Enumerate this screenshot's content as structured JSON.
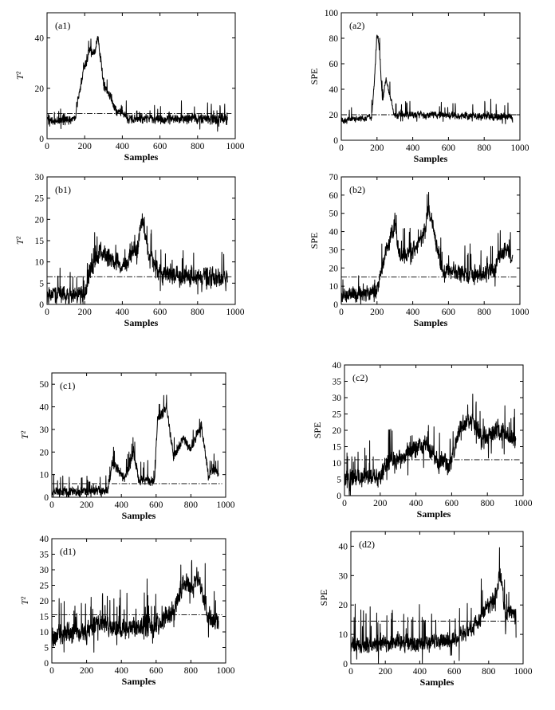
{
  "chart_data": [
    {
      "id": "a1",
      "type": "line",
      "label": "(a1)",
      "xlabel": "Samples",
      "ylabel": "T²",
      "xlim": [
        0,
        1000
      ],
      "ylim": [
        0,
        50
      ],
      "xticks": [
        0,
        200,
        400,
        600,
        800,
        1000
      ],
      "yticks": [
        0,
        20,
        40
      ],
      "n_samples": 960,
      "threshold": 10,
      "profile": [
        [
          0,
          7
        ],
        [
          150,
          8
        ],
        [
          160,
          14
        ],
        [
          190,
          26
        ],
        [
          230,
          36
        ],
        [
          250,
          33
        ],
        [
          270,
          40
        ],
        [
          300,
          22
        ],
        [
          320,
          18
        ],
        [
          340,
          16
        ],
        [
          370,
          10
        ],
        [
          400,
          11
        ],
        [
          420,
          8
        ],
        [
          960,
          8
        ]
      ],
      "noise": 2.2,
      "spike_p": 0.05,
      "spike_amp": 4.0,
      "series": [
        {
          "name": "T²",
          "x": [
            0,
            150,
            160,
            190,
            230,
            250,
            270,
            300,
            320,
            340,
            370,
            400,
            420,
            960
          ],
          "y": [
            7,
            8,
            14,
            26,
            36,
            33,
            40,
            22,
            18,
            16,
            10,
            11,
            8,
            8
          ]
        }
      ]
    },
    {
      "id": "a2",
      "type": "line",
      "label": "(a2)",
      "xlabel": "Samples",
      "ylabel": "SPE",
      "xlim": [
        0,
        1000
      ],
      "ylim": [
        0,
        100
      ],
      "xticks": [
        0,
        200,
        400,
        600,
        800,
        1000
      ],
      "yticks": [
        0,
        20,
        40,
        60,
        80,
        100
      ],
      "n_samples": 960,
      "threshold": 20,
      "profile": [
        [
          0,
          16
        ],
        [
          170,
          17
        ],
        [
          185,
          45
        ],
        [
          200,
          85
        ],
        [
          215,
          70
        ],
        [
          230,
          30
        ],
        [
          250,
          48
        ],
        [
          270,
          35
        ],
        [
          300,
          20
        ],
        [
          400,
          20
        ],
        [
          960,
          18
        ]
      ],
      "noise": 3.0,
      "spike_p": 0.04,
      "spike_amp": 8.0,
      "series": [
        {
          "name": "SPE",
          "x": [
            0,
            170,
            185,
            200,
            215,
            230,
            250,
            270,
            300,
            400,
            960
          ],
          "y": [
            16,
            17,
            45,
            85,
            70,
            30,
            48,
            35,
            20,
            20,
            18
          ]
        }
      ]
    },
    {
      "id": "b1",
      "type": "line",
      "label": "(b1)",
      "xlabel": "Samples",
      "ylabel": "T²",
      "xlim": [
        0,
        1000
      ],
      "ylim": [
        0,
        30
      ],
      "xticks": [
        0,
        200,
        400,
        600,
        800,
        1000
      ],
      "yticks": [
        0,
        5,
        10,
        15,
        20,
        25,
        30
      ],
      "n_samples": 960,
      "threshold": 6.5,
      "profile": [
        [
          0,
          2
        ],
        [
          200,
          2.5
        ],
        [
          230,
          8
        ],
        [
          280,
          12
        ],
        [
          330,
          11
        ],
        [
          400,
          9
        ],
        [
          480,
          13
        ],
        [
          510,
          20
        ],
        [
          540,
          12
        ],
        [
          600,
          7
        ],
        [
          960,
          6
        ]
      ],
      "noise": 2.5,
      "spike_p": 0.06,
      "spike_amp": 4.0,
      "series": [
        {
          "name": "T²",
          "x": [
            0,
            200,
            230,
            280,
            330,
            400,
            480,
            510,
            540,
            600,
            960
          ],
          "y": [
            2,
            2.5,
            8,
            12,
            11,
            9,
            13,
            20,
            12,
            7,
            6
          ]
        }
      ]
    },
    {
      "id": "b2",
      "type": "line",
      "label": "(b2)",
      "xlabel": "Samples",
      "ylabel": "SPE",
      "xlim": [
        0,
        1000
      ],
      "ylim": [
        0,
        70
      ],
      "xticks": [
        0,
        200,
        400,
        600,
        800,
        1000
      ],
      "yticks": [
        0,
        10,
        20,
        30,
        40,
        50,
        60,
        70
      ],
      "n_samples": 960,
      "threshold": 15,
      "profile": [
        [
          0,
          5
        ],
        [
          200,
          7
        ],
        [
          240,
          25
        ],
        [
          300,
          45
        ],
        [
          330,
          25
        ],
        [
          400,
          30
        ],
        [
          460,
          38
        ],
        [
          490,
          52
        ],
        [
          520,
          40
        ],
        [
          560,
          20
        ],
        [
          700,
          16
        ],
        [
          850,
          18
        ],
        [
          890,
          28
        ],
        [
          930,
          30
        ],
        [
          960,
          25
        ]
      ],
      "noise": 5.0,
      "spike_p": 0.05,
      "spike_amp": 10.0,
      "series": [
        {
          "name": "SPE",
          "x": [
            0,
            200,
            240,
            300,
            330,
            400,
            460,
            490,
            520,
            560,
            700,
            850,
            890,
            930,
            960
          ],
          "y": [
            5,
            7,
            25,
            45,
            25,
            30,
            38,
            52,
            40,
            20,
            16,
            18,
            28,
            30,
            25
          ]
        }
      ]
    },
    {
      "id": "c1",
      "type": "line",
      "label": "(c1)",
      "xlabel": "Samples",
      "ylabel": "T²",
      "xlim": [
        0,
        1000
      ],
      "ylim": [
        0,
        55
      ],
      "xticks": [
        0,
        200,
        400,
        600,
        800,
        1000
      ],
      "yticks": [
        0,
        10,
        20,
        30,
        40,
        50
      ],
      "n_samples": 960,
      "threshold": 6,
      "profile": [
        [
          0,
          2
        ],
        [
          320,
          3
        ],
        [
          350,
          15
        ],
        [
          380,
          12
        ],
        [
          420,
          8
        ],
        [
          470,
          20
        ],
        [
          500,
          8
        ],
        [
          590,
          7
        ],
        [
          610,
          35
        ],
        [
          660,
          40
        ],
        [
          700,
          18
        ],
        [
          760,
          26
        ],
        [
          800,
          22
        ],
        [
          860,
          32
        ],
        [
          900,
          10
        ],
        [
          940,
          12
        ],
        [
          960,
          10
        ]
      ],
      "noise": 2.5,
      "spike_p": 0.05,
      "spike_amp": 5.0,
      "series": [
        {
          "name": "T²",
          "x": [
            0,
            320,
            350,
            380,
            420,
            470,
            500,
            590,
            610,
            660,
            700,
            760,
            800,
            860,
            900,
            940,
            960
          ],
          "y": [
            2,
            3,
            15,
            12,
            8,
            20,
            8,
            7,
            35,
            40,
            18,
            26,
            22,
            32,
            10,
            12,
            10
          ]
        }
      ]
    },
    {
      "id": "c2",
      "type": "line",
      "label": "(c2)",
      "xlabel": "Samples",
      "ylabel": "SPE",
      "xlim": [
        0,
        1000
      ],
      "ylim": [
        0,
        40
      ],
      "xticks": [
        0,
        200,
        400,
        600,
        800,
        1000
      ],
      "yticks": [
        0,
        5,
        10,
        15,
        20,
        25,
        30,
        35,
        40
      ],
      "n_samples": 960,
      "threshold": 11,
      "profile": [
        [
          0,
          5
        ],
        [
          200,
          5.5
        ],
        [
          240,
          10
        ],
        [
          350,
          13
        ],
        [
          450,
          16
        ],
        [
          500,
          12
        ],
        [
          590,
          9
        ],
        [
          640,
          20
        ],
        [
          700,
          24
        ],
        [
          780,
          17
        ],
        [
          850,
          20
        ],
        [
          960,
          17
        ]
      ],
      "noise": 3.2,
      "spike_p": 0.05,
      "spike_amp": 7.0,
      "series": [
        {
          "name": "SPE",
          "x": [
            0,
            200,
            240,
            350,
            450,
            500,
            590,
            640,
            700,
            780,
            850,
            960
          ],
          "y": [
            5,
            5.5,
            10,
            13,
            16,
            12,
            9,
            20,
            24,
            17,
            20,
            17
          ]
        }
      ]
    },
    {
      "id": "d1",
      "type": "line",
      "label": "(d1)",
      "xlabel": "Samples",
      "ylabel": "T²",
      "xlim": [
        0,
        1000
      ],
      "ylim": [
        0,
        40
      ],
      "xticks": [
        0,
        200,
        400,
        600,
        800,
        1000
      ],
      "yticks": [
        0,
        5,
        10,
        15,
        20,
        25,
        30,
        35,
        40
      ],
      "n_samples": 960,
      "threshold": 15.5,
      "profile": [
        [
          0,
          9
        ],
        [
          200,
          10
        ],
        [
          260,
          13
        ],
        [
          400,
          11
        ],
        [
          600,
          12
        ],
        [
          700,
          17
        ],
        [
          760,
          26
        ],
        [
          800,
          24
        ],
        [
          840,
          28
        ],
        [
          900,
          15
        ],
        [
          960,
          13
        ]
      ],
      "noise": 3.5,
      "spike_p": 0.06,
      "spike_amp": 8.0,
      "series": [
        {
          "name": "T²",
          "x": [
            0,
            200,
            260,
            400,
            600,
            700,
            760,
            800,
            840,
            900,
            960
          ],
          "y": [
            9,
            10,
            13,
            11,
            12,
            17,
            26,
            24,
            28,
            15,
            13
          ]
        }
      ]
    },
    {
      "id": "d2",
      "type": "line",
      "label": "(d2)",
      "xlabel": "Samples",
      "ylabel": "SPE",
      "xlim": [
        0,
        1000
      ],
      "ylim": [
        0,
        45
      ],
      "xticks": [
        0,
        200,
        400,
        600,
        800,
        1000
      ],
      "yticks": [
        0,
        10,
        20,
        30,
        40
      ],
      "n_samples": 960,
      "threshold": 14.5,
      "profile": [
        [
          0,
          6
        ],
        [
          200,
          7
        ],
        [
          400,
          7
        ],
        [
          600,
          8
        ],
        [
          700,
          12
        ],
        [
          780,
          18
        ],
        [
          830,
          22
        ],
        [
          870,
          30
        ],
        [
          900,
          16
        ],
        [
          930,
          18
        ],
        [
          960,
          16
        ]
      ],
      "noise": 3.2,
      "spike_p": 0.06,
      "spike_amp": 8.0,
      "series": [
        {
          "name": "SPE",
          "x": [
            0,
            200,
            400,
            600,
            700,
            780,
            830,
            870,
            900,
            930,
            960
          ],
          "y": [
            6,
            7,
            7,
            8,
            12,
            18,
            22,
            30,
            16,
            18,
            16
          ]
        }
      ]
    }
  ]
}
